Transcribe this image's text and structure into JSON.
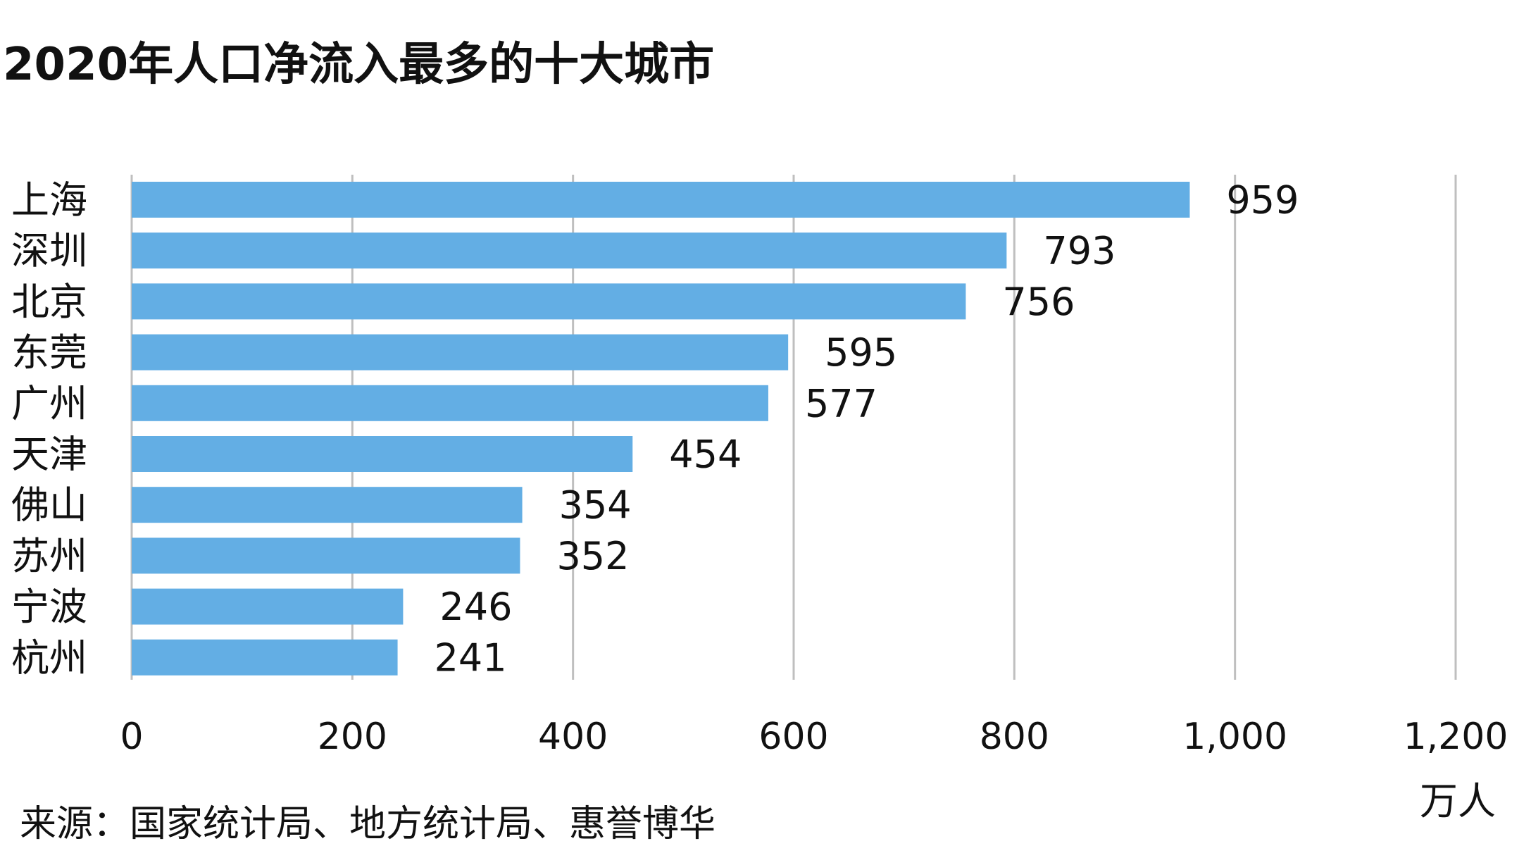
{
  "chart_data": {
    "type": "bar",
    "orientation": "horizontal",
    "title": "2020年人口净流入最多的十大城市",
    "categories": [
      "上海",
      "深圳",
      "北京",
      "东莞",
      "广州",
      "天津",
      "佛山",
      "苏州",
      "宁波",
      "杭州"
    ],
    "values": [
      959,
      793,
      756,
      595,
      577,
      454,
      354,
      352,
      246,
      241
    ],
    "data_labels": [
      "959",
      "793",
      "756",
      "595",
      "577",
      "454",
      "354",
      "352",
      "246",
      "241"
    ],
    "x_ticks": [
      "0",
      "200",
      "400",
      "600",
      "800",
      "1,000",
      "1,200"
    ],
    "xlim": [
      0,
      1200
    ],
    "xlabel": "",
    "ylabel": "",
    "unit": "万人",
    "grid": true,
    "bar_color": "#63AEE4",
    "grid_color": "#BFBFBF"
  },
  "source_note": "来源：国家统计局、地方统计局、惠誉博华"
}
